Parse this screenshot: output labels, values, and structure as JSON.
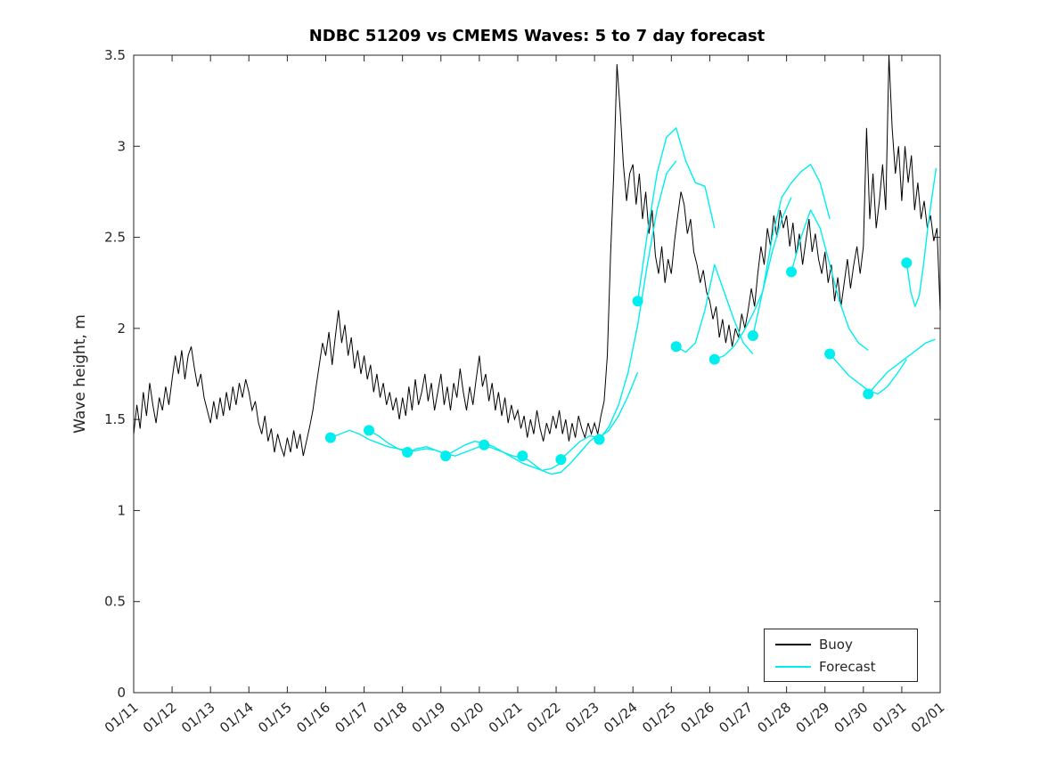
{
  "figure": {
    "title": "NDBC 51209 vs CMEMS Waves: 5 to 7 day forecast",
    "ylabel": "Wave height, m"
  },
  "legend": {
    "items": [
      {
        "label": "Buoy",
        "color": "#000000"
      },
      {
        "label": "Forecast",
        "color": "#00eeee"
      }
    ]
  },
  "chart_data": {
    "type": "line",
    "title": "NDBC 51209 vs CMEMS Waves: 5 to 7 day forecast",
    "xlabel": "",
    "ylabel": "Wave height, m",
    "xlim_days": [
      0,
      21
    ],
    "ylim": [
      0,
      3.5
    ],
    "grid": false,
    "legend_position": "inside-bottom-right",
    "x_ticklabels": [
      "01/11",
      "01/12",
      "01/13",
      "01/14",
      "01/15",
      "01/16",
      "01/17",
      "01/18",
      "01/19",
      "01/20",
      "01/21",
      "01/22",
      "01/23",
      "01/24",
      "01/25",
      "01/26",
      "01/27",
      "01/28",
      "01/29",
      "01/30",
      "01/31",
      "02/01"
    ],
    "y_ticks": [
      0,
      0.5,
      1,
      1.5,
      2,
      2.5,
      3,
      3.5
    ],
    "y_ticklabels": [
      "0",
      "0.5",
      "1",
      "1.5",
      "2",
      "2.5",
      "3",
      "3.5"
    ],
    "series": [
      {
        "name": "Buoy",
        "color": "#000000",
        "x_start": 0,
        "x_step": 0.0833333,
        "values": [
          1.42,
          1.58,
          1.45,
          1.65,
          1.52,
          1.7,
          1.58,
          1.48,
          1.62,
          1.55,
          1.68,
          1.58,
          1.72,
          1.85,
          1.75,
          1.88,
          1.72,
          1.85,
          1.9,
          1.78,
          1.68,
          1.75,
          1.62,
          1.55,
          1.48,
          1.6,
          1.5,
          1.62,
          1.52,
          1.65,
          1.55,
          1.68,
          1.58,
          1.7,
          1.62,
          1.72,
          1.65,
          1.55,
          1.6,
          1.48,
          1.42,
          1.52,
          1.38,
          1.45,
          1.32,
          1.42,
          1.35,
          1.3,
          1.4,
          1.32,
          1.44,
          1.34,
          1.42,
          1.3,
          1.38,
          1.46,
          1.55,
          1.68,
          1.8,
          1.92,
          1.85,
          1.98,
          1.8,
          1.95,
          2.1,
          1.92,
          2.02,
          1.85,
          1.95,
          1.78,
          1.88,
          1.75,
          1.85,
          1.72,
          1.8,
          1.65,
          1.75,
          1.62,
          1.7,
          1.58,
          1.65,
          1.55,
          1.62,
          1.5,
          1.62,
          1.52,
          1.68,
          1.55,
          1.72,
          1.58,
          1.65,
          1.75,
          1.6,
          1.7,
          1.55,
          1.65,
          1.75,
          1.58,
          1.68,
          1.55,
          1.7,
          1.62,
          1.78,
          1.65,
          1.55,
          1.68,
          1.58,
          1.72,
          1.85,
          1.68,
          1.75,
          1.6,
          1.7,
          1.55,
          1.65,
          1.52,
          1.62,
          1.48,
          1.58,
          1.5,
          1.55,
          1.45,
          1.52,
          1.4,
          1.5,
          1.42,
          1.55,
          1.45,
          1.38,
          1.48,
          1.42,
          1.52,
          1.45,
          1.55,
          1.42,
          1.5,
          1.38,
          1.48,
          1.4,
          1.52,
          1.45,
          1.4,
          1.48,
          1.42,
          1.48,
          1.42,
          1.52,
          1.6,
          1.85,
          2.4,
          2.85,
          3.45,
          3.2,
          2.9,
          2.7,
          2.85,
          2.9,
          2.68,
          2.85,
          2.6,
          2.75,
          2.52,
          2.65,
          2.4,
          2.3,
          2.45,
          2.25,
          2.38,
          2.3,
          2.48,
          2.62,
          2.75,
          2.68,
          2.52,
          2.6,
          2.42,
          2.35,
          2.25,
          2.32,
          2.2,
          2.15,
          2.05,
          2.12,
          1.95,
          2.05,
          1.92,
          2.02,
          1.9,
          2.0,
          1.95,
          2.08,
          2.0,
          2.1,
          2.22,
          2.12,
          2.3,
          2.45,
          2.35,
          2.55,
          2.45,
          2.62,
          2.5,
          2.65,
          2.55,
          2.62,
          2.45,
          2.58,
          2.4,
          2.52,
          2.35,
          2.48,
          2.6,
          2.42,
          2.52,
          2.38,
          2.3,
          2.42,
          2.25,
          2.35,
          2.15,
          2.28,
          2.12,
          2.25,
          2.38,
          2.22,
          2.35,
          2.45,
          2.3,
          2.45,
          3.1,
          2.6,
          2.85,
          2.55,
          2.7,
          2.9,
          2.65,
          3.5,
          3.1,
          2.85,
          3.0,
          2.7,
          3.0,
          2.8,
          2.95,
          2.65,
          2.8,
          2.6,
          2.7,
          2.55,
          2.62,
          2.48,
          2.55,
          2.1
        ]
      },
      {
        "name": "Forecast",
        "color": "#00eeee",
        "segments": [
          {
            "x_start": 5.125,
            "x_step": 0.25,
            "values": [
              1.4,
              1.42,
              1.44,
              1.42,
              1.39,
              1.37,
              1.35,
              1.34,
              1.33
            ]
          },
          {
            "x_start": 6.125,
            "x_step": 0.25,
            "values": [
              1.44,
              1.41,
              1.37,
              1.34,
              1.32,
              1.33,
              1.34,
              1.33,
              1.31
            ]
          },
          {
            "x_start": 7.125,
            "x_step": 0.25,
            "values": [
              1.32,
              1.34,
              1.35,
              1.33,
              1.31,
              1.3,
              1.32,
              1.34,
              1.36
            ]
          },
          {
            "x_start": 8.125,
            "x_step": 0.25,
            "values": [
              1.3,
              1.33,
              1.36,
              1.38,
              1.37,
              1.35,
              1.32,
              1.3,
              1.29
            ]
          },
          {
            "x_start": 9.125,
            "x_step": 0.25,
            "values": [
              1.36,
              1.34,
              1.32,
              1.29,
              1.26,
              1.24,
              1.22,
              1.23,
              1.26
            ]
          },
          {
            "x_start": 10.125,
            "x_step": 0.25,
            "values": [
              1.3,
              1.26,
              1.22,
              1.2,
              1.21,
              1.26,
              1.32,
              1.38,
              1.42
            ]
          },
          {
            "x_start": 11.125,
            "x_step": 0.25,
            "values": [
              1.28,
              1.33,
              1.38,
              1.41,
              1.4,
              1.44,
              1.52,
              1.63,
              1.76
            ]
          },
          {
            "x_start": 12.125,
            "x_step": 0.25,
            "values": [
              1.39,
              1.46,
              1.58,
              1.76,
              2.02,
              2.35,
              2.65,
              2.85,
              2.92
            ]
          },
          {
            "x_start": 13.125,
            "x_step": 0.25,
            "values": [
              2.15,
              2.52,
              2.85,
              3.05,
              3.1,
              2.92,
              2.8,
              2.78,
              2.55
            ]
          },
          {
            "x_start": 14.125,
            "x_step": 0.25,
            "values": [
              1.9,
              1.87,
              1.92,
              2.1,
              2.35,
              2.2,
              2.05,
              1.92,
              1.86
            ]
          },
          {
            "x_start": 15.125,
            "x_step": 0.25,
            "values": [
              1.83,
              1.85,
              1.9,
              1.98,
              2.08,
              2.2,
              2.42,
              2.6,
              2.72
            ]
          },
          {
            "x_start": 16.125,
            "x_step": 0.25,
            "values": [
              1.96,
              2.2,
              2.5,
              2.72,
              2.8,
              2.86,
              2.9,
              2.8,
              2.6
            ]
          },
          {
            "x_start": 17.125,
            "x_step": 0.25,
            "values": [
              2.31,
              2.5,
              2.65,
              2.55,
              2.35,
              2.15,
              2.0,
              1.92,
              1.88
            ]
          },
          {
            "x_start": 18.125,
            "x_step": 0.25,
            "values": [
              1.86,
              1.8,
              1.74,
              1.7,
              1.66,
              1.64,
              1.68,
              1.75,
              1.83
            ]
          },
          {
            "x_start": 19.125,
            "x_step": 0.25,
            "values": [
              1.64,
              1.7,
              1.76,
              1.8,
              1.84,
              1.88,
              1.92,
              1.94,
              1.95
            ]
          },
          {
            "x_start": 20.125,
            "x_step": 0.11,
            "values": [
              2.36,
              2.2,
              2.12,
              2.18,
              2.35,
              2.55,
              2.72,
              2.88,
              3.0
            ]
          }
        ],
        "markers": {
          "x": [
            5.125,
            6.125,
            7.125,
            8.125,
            9.125,
            10.125,
            11.125,
            12.125,
            13.125,
            14.125,
            15.125,
            16.125,
            17.125,
            18.125,
            19.125,
            20.125
          ],
          "y": [
            1.4,
            1.44,
            1.32,
            1.3,
            1.36,
            1.3,
            1.28,
            1.39,
            2.15,
            1.9,
            1.83,
            1.96,
            2.31,
            1.86,
            1.64,
            2.36
          ]
        }
      }
    ]
  }
}
